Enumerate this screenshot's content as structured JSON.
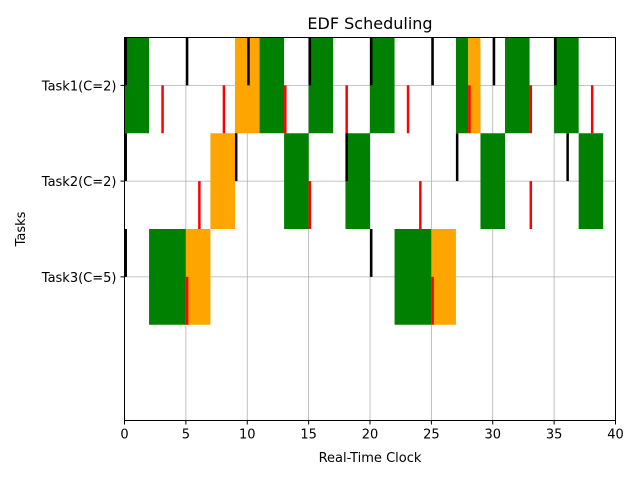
{
  "chart_data": {
    "type": "gantt",
    "title": "EDF Scheduling",
    "xlabel": "Real-Time Clock",
    "ylabel": "Tasks",
    "xlim": [
      0,
      40
    ],
    "ylim": [
      -0.5,
      3.5
    ],
    "xticks": [
      0,
      5,
      10,
      15,
      20,
      25,
      30,
      35,
      40
    ],
    "grid": true,
    "colors": {
      "executing": "#008000",
      "deadline_miss": "#ffa500",
      "release": "#000000",
      "deadline": "#ff0000",
      "grid": "#b0b0b0"
    },
    "tasks": [
      {
        "label": "Task1(C=2)",
        "y": 3,
        "executing": [
          [
            0,
            2
          ],
          [
            11,
            13
          ],
          [
            15,
            17
          ],
          [
            20,
            22
          ],
          [
            27,
            28
          ],
          [
            31,
            33
          ],
          [
            35,
            37
          ]
        ],
        "deadline_miss": [
          [
            9,
            11
          ],
          [
            28,
            29
          ]
        ],
        "releases": [
          0.1,
          5.1,
          10.1,
          15.1,
          20.1,
          25.1,
          30.1,
          35.1
        ],
        "deadlines": [
          3.1,
          8.1,
          13.1,
          18.1,
          23.1,
          28.1,
          33.1,
          38.1
        ]
      },
      {
        "label": "Task2(C=2)",
        "y": 2,
        "executing": [
          [
            13,
            15
          ],
          [
            18,
            20
          ],
          [
            29,
            31
          ],
          [
            37,
            39
          ]
        ],
        "deadline_miss": [
          [
            7,
            9
          ]
        ],
        "releases": [
          0.1,
          9.1,
          18.1,
          27.1,
          36.1
        ],
        "deadlines": [
          6.1,
          15.1,
          24.1,
          33.1
        ]
      },
      {
        "label": "Task3(C=5)",
        "y": 1,
        "executing": [
          [
            2,
            5
          ],
          [
            22,
            25
          ]
        ],
        "deadline_miss": [
          [
            5,
            7
          ],
          [
            25,
            27
          ]
        ],
        "releases": [
          0.1,
          20.1
        ],
        "deadlines": [
          5.1,
          25.1
        ]
      }
    ]
  }
}
